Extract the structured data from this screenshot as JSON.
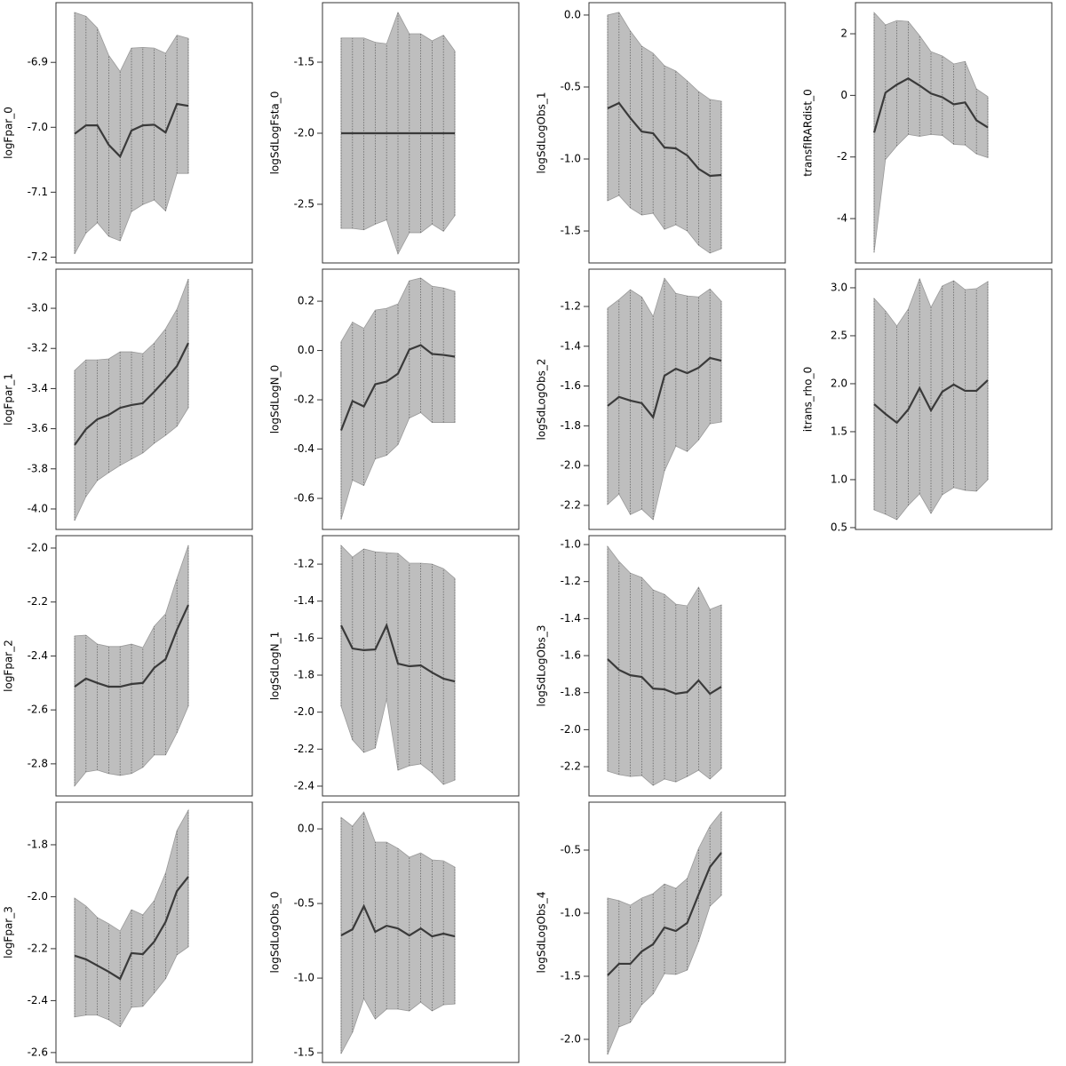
{
  "chart_data": [
    {
      "type": "line",
      "ylabel": "logFpar_0",
      "values": [
        -7.01,
        -6.997,
        -6.997,
        -7.027,
        -7.045,
        -7.005,
        -6.997,
        -6.996,
        -7.008,
        -6.964,
        -6.967
      ],
      "upper": [
        -6.823,
        -6.829,
        -6.847,
        -6.889,
        -6.914,
        -6.878,
        -6.877,
        -6.878,
        -6.886,
        -6.858,
        -6.863
      ],
      "lower": [
        -7.195,
        -7.163,
        -7.147,
        -7.168,
        -7.175,
        -7.13,
        -7.119,
        -7.112,
        -7.129,
        -7.071,
        -7.071
      ],
      "ylim": [
        -7.209,
        -6.808
      ],
      "yticks": [
        -6.9,
        {
          "value": -7.0,
          "label": "-7.0"
        },
        -7.1,
        -7.2
      ]
    },
    {
      "type": "line",
      "ylabel": "logFpar_1",
      "values": [
        -3.681,
        -3.602,
        -3.553,
        -3.531,
        -3.496,
        -3.482,
        -3.473,
        -3.416,
        -3.354,
        -3.288,
        -3.173
      ],
      "upper": [
        -3.31,
        -3.257,
        -3.257,
        -3.252,
        -3.217,
        -3.217,
        -3.226,
        -3.173,
        -3.102,
        -3.004,
        -2.854
      ],
      "lower": [
        -4.058,
        -3.938,
        -3.858,
        -3.819,
        -3.783,
        -3.752,
        -3.721,
        -3.673,
        -3.633,
        -3.588,
        -3.496
      ],
      "ylim": [
        -4.102,
        -2.805
      ],
      "yticks": [
        {
          "value": -3.0,
          "label": "-3.0"
        },
        -3.2,
        -3.4,
        -3.6,
        -3.8,
        {
          "value": -4.0,
          "label": "-4.0"
        }
      ]
    },
    {
      "type": "line",
      "ylabel": "logFpar_2",
      "values": [
        -2.514,
        -2.484,
        -2.5,
        -2.514,
        -2.514,
        -2.504,
        -2.5,
        -2.444,
        -2.412,
        -2.303,
        -2.211
      ],
      "upper": [
        -2.326,
        -2.323,
        -2.356,
        -2.365,
        -2.365,
        -2.356,
        -2.369,
        -2.29,
        -2.244,
        -2.112,
        -1.99
      ],
      "lower": [
        -2.882,
        -2.83,
        -2.823,
        -2.836,
        -2.843,
        -2.836,
        -2.813,
        -2.767,
        -2.767,
        -2.685,
        -2.586
      ],
      "ylim": [
        -2.919,
        -1.954
      ],
      "yticks": [
        {
          "value": -2.0,
          "label": "-2.0"
        },
        -2.2,
        -2.4,
        -2.6,
        -2.8
      ]
    },
    {
      "type": "line",
      "ylabel": "logFpar_3",
      "values": [
        -2.227,
        -2.241,
        -2.265,
        -2.289,
        -2.316,
        -2.217,
        -2.221,
        -2.173,
        -2.097,
        -1.978,
        -1.923
      ],
      "upper": [
        -2.005,
        -2.036,
        -2.08,
        -2.104,
        -2.132,
        -2.05,
        -2.07,
        -2.015,
        -1.909,
        -1.745,
        -1.667
      ],
      "lower": [
        -2.463,
        -2.456,
        -2.456,
        -2.474,
        -2.501,
        -2.426,
        -2.422,
        -2.371,
        -2.316,
        -2.224,
        -2.193
      ],
      "ylim": [
        -2.638,
        -1.636
      ],
      "yticks": [
        -1.8,
        {
          "value": -2.0,
          "label": "-2.0"
        },
        -2.2,
        -2.4,
        -2.6
      ]
    },
    {
      "type": "line",
      "ylabel": "logSdLogFsta_0",
      "values": [
        -2.0,
        -2.0,
        -2.0,
        -2.0,
        -2.0,
        -2.0,
        -2.0,
        -2.0,
        -2.0,
        -2.0,
        -2.0
      ],
      "upper": [
        -1.33,
        -1.33,
        -1.33,
        -1.36,
        -1.37,
        -1.15,
        -1.3,
        -1.3,
        -1.35,
        -1.31,
        -1.42
      ],
      "lower": [
        -2.67,
        -2.67,
        -2.68,
        -2.64,
        -2.61,
        -2.85,
        -2.7,
        -2.7,
        -2.64,
        -2.69,
        -2.58
      ],
      "ylim": [
        -2.913,
        -1.081
      ],
      "yticks": [
        -1.5,
        {
          "value": -2.0,
          "label": "-2.0"
        },
        -2.5
      ]
    },
    {
      "type": "line",
      "ylabel": "logSdLogN_0",
      "values": [
        -0.324,
        -0.205,
        -0.227,
        -0.137,
        -0.126,
        -0.094,
        0.004,
        0.022,
        -0.014,
        -0.018,
        -0.025
      ],
      "upper": [
        0.036,
        0.115,
        0.09,
        0.164,
        0.171,
        0.189,
        0.283,
        0.294,
        0.261,
        0.254,
        0.24
      ],
      "lower": [
        -0.685,
        -0.526,
        -0.548,
        -0.44,
        -0.425,
        -0.382,
        -0.274,
        -0.252,
        -0.292,
        -0.292,
        -0.292
      ],
      "ylim": [
        -0.726,
        0.33
      ],
      "yticks": [
        0.2,
        {
          "value": 0.0,
          "label": "0.0"
        },
        -0.2,
        -0.4,
        -0.6
      ]
    },
    {
      "type": "line",
      "ylabel": "logSdLogN_1",
      "values": [
        -1.531,
        -1.656,
        -1.665,
        -1.661,
        -1.531,
        -1.738,
        -1.752,
        -1.747,
        -1.786,
        -1.819,
        -1.834
      ],
      "upper": [
        -1.099,
        -1.162,
        -1.118,
        -1.133,
        -1.138,
        -1.142,
        -1.195,
        -1.195,
        -1.2,
        -1.224,
        -1.277
      ],
      "lower": [
        -1.968,
        -2.15,
        -2.218,
        -2.194,
        -1.93,
        -2.314,
        -2.29,
        -2.28,
        -2.328,
        -2.391,
        -2.367
      ],
      "ylim": [
        -2.453,
        -1.046
      ],
      "yticks": [
        -1.2,
        -1.4,
        -1.6,
        -1.8,
        {
          "value": -2.0,
          "label": "-2.0"
        },
        -2.2,
        -2.4
      ]
    },
    {
      "type": "line",
      "ylabel": "logSdLogObs_0",
      "values": [
        -0.714,
        -0.673,
        -0.518,
        -0.69,
        -0.649,
        -0.667,
        -0.714,
        -0.667,
        -0.72,
        -0.702,
        -0.72
      ],
      "upper": [
        0.077,
        0.018,
        0.113,
        -0.089,
        -0.089,
        -0.131,
        -0.19,
        -0.161,
        -0.208,
        -0.214,
        -0.256
      ],
      "lower": [
        -1.506,
        -1.363,
        -1.137,
        -1.274,
        -1.208,
        -1.208,
        -1.22,
        -1.161,
        -1.22,
        -1.179,
        -1.173
      ],
      "ylim": [
        -1.565,
        0.179
      ],
      "yticks": [
        {
          "value": 0.0,
          "label": "0.0"
        },
        -0.5,
        {
          "value": -1.0,
          "label": "-1.0"
        },
        -1.5
      ]
    },
    {
      "type": "line",
      "ylabel": "logSdLogObs_1",
      "values": [
        -0.648,
        -0.611,
        -0.716,
        -0.809,
        -0.821,
        -0.92,
        -0.926,
        -0.975,
        -1.068,
        -1.117,
        -1.111
      ],
      "upper": [
        0.0,
        0.019,
        -0.111,
        -0.216,
        -0.265,
        -0.352,
        -0.389,
        -0.457,
        -0.531,
        -0.586,
        -0.599
      ],
      "lower": [
        -1.29,
        -1.253,
        -1.34,
        -1.389,
        -1.377,
        -1.488,
        -1.457,
        -1.5,
        -1.599,
        -1.654,
        -1.623
      ],
      "ylim": [
        -1.722,
        0.086
      ],
      "yticks": [
        {
          "value": 0.0,
          "label": "0.0"
        },
        -0.5,
        {
          "value": -1.0,
          "label": "-1.0"
        },
        -1.5
      ]
    },
    {
      "type": "line",
      "ylabel": "logSdLogObs_2",
      "values": [
        -1.7,
        -1.655,
        -1.673,
        -1.686,
        -1.757,
        -1.548,
        -1.513,
        -1.535,
        -1.508,
        -1.459,
        -1.473
      ],
      "upper": [
        -1.209,
        -1.165,
        -1.116,
        -1.152,
        -1.25,
        -1.058,
        -1.134,
        -1.147,
        -1.152,
        -1.112,
        -1.174
      ],
      "lower": [
        -2.196,
        -2.143,
        -2.246,
        -2.219,
        -2.272,
        -2.027,
        -1.902,
        -1.929,
        -1.871,
        -1.79,
        -1.781
      ],
      "ylim": [
        -2.321,
        -1.0125
      ],
      "yticks": [
        -1.2,
        -1.4,
        -1.6,
        -1.8,
        {
          "value": -2.0,
          "label": "-2.0"
        },
        -2.2
      ]
    },
    {
      "type": "line",
      "ylabel": "logSdLogObs_3",
      "values": [
        -1.619,
        -1.677,
        -1.706,
        -1.715,
        -1.778,
        -1.782,
        -1.806,
        -1.797,
        -1.734,
        -1.806,
        -1.768
      ],
      "upper": [
        -1.01,
        -1.091,
        -1.154,
        -1.178,
        -1.245,
        -1.269,
        -1.322,
        -1.331,
        -1.23,
        -1.35,
        -1.326
      ],
      "lower": [
        -2.224,
        -2.243,
        -2.253,
        -2.248,
        -2.301,
        -2.267,
        -2.282,
        -2.253,
        -2.219,
        -2.267,
        -2.21
      ],
      "ylim": [
        -2.358,
        -0.952
      ],
      "yticks": [
        {
          "value": -1.0,
          "label": "-1.0"
        },
        -1.2,
        -1.4,
        -1.6,
        -1.8,
        {
          "value": -2.0,
          "label": "-2.0"
        },
        -2.2
      ]
    },
    {
      "type": "line",
      "ylabel": "logSdLogObs_4",
      "values": [
        -1.493,
        -1.401,
        -1.401,
        -1.303,
        -1.246,
        -1.113,
        -1.141,
        -1.077,
        -0.852,
        -0.634,
        -0.521
      ],
      "upper": [
        -0.88,
        -0.901,
        -0.937,
        -0.88,
        -0.845,
        -0.768,
        -0.803,
        -0.725,
        -0.486,
        -0.31,
        -0.197
      ],
      "lower": [
        -2.12,
        -1.901,
        -1.866,
        -1.725,
        -1.641,
        -1.479,
        -1.486,
        -1.451,
        -1.225,
        -0.944,
        -0.859
      ],
      "ylim": [
        -2.183,
        -0.12
      ],
      "yticks": [
        -0.5,
        {
          "value": -1.0,
          "label": "-1.0"
        },
        -1.5,
        {
          "value": -2.0,
          "label": "-2.0"
        }
      ]
    },
    {
      "type": "line",
      "ylabel": "transfIRARdist_0",
      "values": [
        -1.21,
        0.09,
        0.35,
        0.55,
        0.32,
        0.06,
        -0.06,
        -0.29,
        -0.23,
        -0.81,
        -1.04
      ],
      "upper": [
        2.69,
        2.29,
        2.43,
        2.4,
        1.94,
        1.42,
        1.28,
        1.02,
        1.1,
        0.21,
        -0.04
      ],
      "lower": [
        -5.1,
        -2.08,
        -1.64,
        -1.27,
        -1.33,
        -1.27,
        -1.3,
        -1.59,
        -1.61,
        -1.9,
        -2.02
      ],
      "ylim": [
        -5.44,
        3.01
      ],
      "yticks": [
        2,
        0,
        -2,
        -4
      ]
    },
    {
      "type": "line",
      "ylabel": "itrans_rho_0",
      "values": [
        1.787,
        1.685,
        1.593,
        1.731,
        1.954,
        1.722,
        1.917,
        1.991,
        1.926,
        1.926,
        2.037
      ],
      "upper": [
        2.889,
        2.759,
        2.602,
        2.778,
        3.093,
        2.796,
        3.019,
        3.074,
        2.981,
        2.991,
        3.065
      ],
      "lower": [
        0.685,
        0.639,
        0.583,
        0.731,
        0.852,
        0.648,
        0.843,
        0.917,
        0.889,
        0.88,
        1.0
      ],
      "ylim": [
        0.481,
        3.194
      ],
      "yticks": [
        {
          "value": 3.0,
          "label": "3.0"
        },
        2.5,
        {
          "value": 2.0,
          "label": "2.0"
        },
        1.5,
        {
          "value": 1.0,
          "label": "1.0"
        },
        0.5
      ]
    }
  ]
}
